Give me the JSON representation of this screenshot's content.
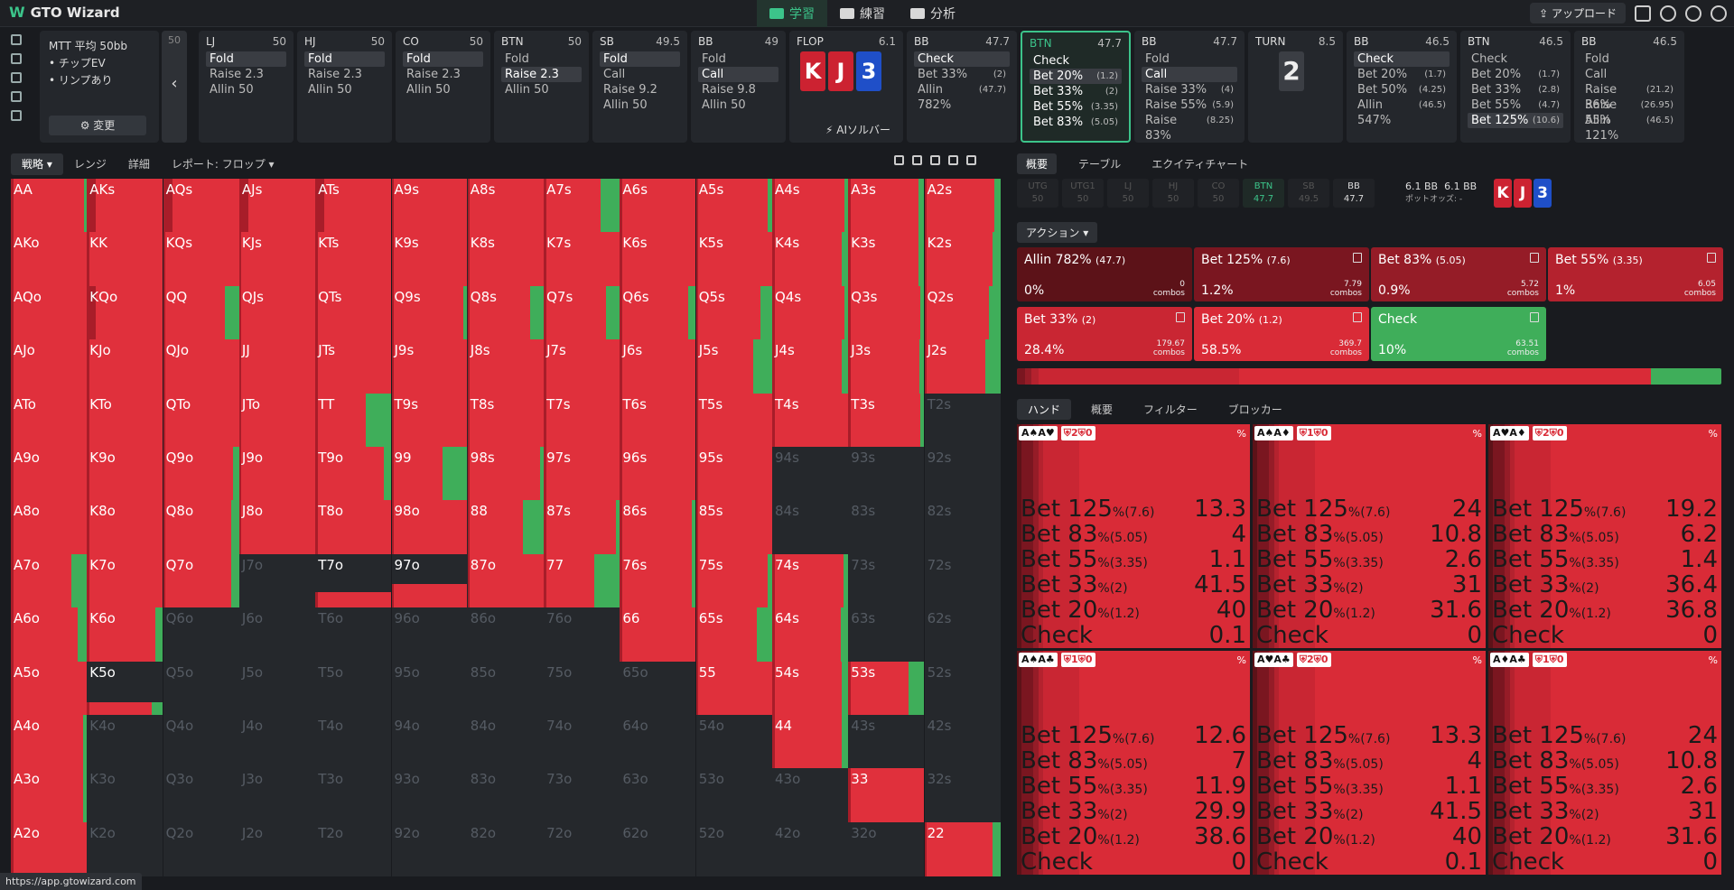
{
  "app": {
    "title": "GTO Wizard"
  },
  "nav": [
    {
      "label": "学習",
      "active": true
    },
    {
      "label": "練習",
      "active": false
    },
    {
      "label": "分析",
      "active": false
    }
  ],
  "topright": {
    "upload": "アップロード"
  },
  "mtt": {
    "title": "MTT 平均 50bb",
    "bullets": [
      "チップEV",
      "リンプあり"
    ],
    "change": "変更",
    "back_stack": "50"
  },
  "actions": [
    {
      "pos": "LJ",
      "stack": "50",
      "items": [
        {
          "a": "Fold",
          "sel": true
        },
        {
          "a": "Raise 2.3"
        },
        {
          "a": "Allin 50"
        }
      ]
    },
    {
      "pos": "HJ",
      "stack": "50",
      "items": [
        {
          "a": "Fold",
          "sel": true
        },
        {
          "a": "Raise 2.3"
        },
        {
          "a": "Allin 50"
        }
      ]
    },
    {
      "pos": "CO",
      "stack": "50",
      "items": [
        {
          "a": "Fold",
          "sel": true
        },
        {
          "a": "Raise 2.3"
        },
        {
          "a": "Allin 50"
        }
      ]
    },
    {
      "pos": "BTN",
      "stack": "50",
      "items": [
        {
          "a": "Fold"
        },
        {
          "a": "Raise 2.3",
          "sel": true
        },
        {
          "a": "Allin 50"
        }
      ]
    },
    {
      "pos": "SB",
      "stack": "49.5",
      "items": [
        {
          "a": "Fold",
          "sel": true
        },
        {
          "a": "Call"
        },
        {
          "a": "Raise 9.2"
        },
        {
          "a": "Allin 50"
        }
      ]
    },
    {
      "pos": "BB",
      "stack": "49",
      "items": [
        {
          "a": "Fold"
        },
        {
          "a": "Call",
          "sel": true
        },
        {
          "a": "Raise 9.8"
        },
        {
          "a": "Allin 50"
        }
      ]
    }
  ],
  "flop": {
    "label": "FLOP",
    "pot": "6.1",
    "cards": [
      "K",
      "J",
      "3"
    ],
    "solver": "AIソルバー"
  },
  "street_cards": [
    {
      "pos": "BB",
      "stack": "47.7",
      "items": [
        {
          "a": "Check",
          "sel": true
        },
        {
          "a": "Bet 33%",
          "s": "(2)"
        },
        {
          "a": "Allin 782%",
          "s": "(47.7)"
        }
      ]
    },
    {
      "pos": "BTN",
      "stack": "47.7",
      "hl": true,
      "items": [
        {
          "a": "Check"
        },
        {
          "a": "Bet 20%",
          "s": "(1.2)",
          "sel": true
        },
        {
          "a": "Bet 33%",
          "s": "(2)"
        },
        {
          "a": "Bet 55%",
          "s": "(3.35)"
        },
        {
          "a": "Bet 83%",
          "s": "(5.05)"
        }
      ]
    },
    {
      "pos": "BB",
      "stack": "47.7",
      "items": [
        {
          "a": "Fold"
        },
        {
          "a": "Call",
          "sel": true
        },
        {
          "a": "Raise 33%",
          "s": "(4)"
        },
        {
          "a": "Raise 55%",
          "s": "(5.9)"
        },
        {
          "a": "Raise 83%",
          "s": "(8.25)"
        }
      ]
    }
  ],
  "turn": {
    "label": "TURN",
    "pot": "8.5",
    "card": "2"
  },
  "turn_cards": [
    {
      "pos": "BB",
      "stack": "46.5",
      "items": [
        {
          "a": "Check",
          "sel": true
        },
        {
          "a": "Bet 20%",
          "s": "(1.7)"
        },
        {
          "a": "Bet 50%",
          "s": "(4.25)"
        },
        {
          "a": "Allin 547%",
          "s": "(46.5)"
        }
      ]
    },
    {
      "pos": "BTN",
      "stack": "46.5",
      "items": [
        {
          "a": "Check"
        },
        {
          "a": "Bet 20%",
          "s": "(1.7)"
        },
        {
          "a": "Bet 33%",
          "s": "(2.8)"
        },
        {
          "a": "Bet 55%",
          "s": "(4.7)"
        },
        {
          "a": "Bet 125%",
          "s": "(10.6)",
          "sel": true
        }
      ]
    },
    {
      "pos": "BB",
      "stack": "46.5",
      "items": [
        {
          "a": "Fold"
        },
        {
          "a": "Call"
        },
        {
          "a": "Raise 36%",
          "s": "(21.2)"
        },
        {
          "a": "Raise 55%",
          "s": "(26.95)"
        },
        {
          "a": "Allin 121%",
          "s": "(46.5)"
        }
      ]
    }
  ],
  "left_tabs": [
    "戦略",
    "レンジ",
    "詳細",
    "レポート: フロップ"
  ],
  "grid": {
    "ranks": [
      "A",
      "K",
      "Q",
      "J",
      "T",
      "9",
      "8",
      "7",
      "6",
      "5",
      "4",
      "3",
      "2"
    ],
    "empty": [
      "T2s",
      "94s",
      "93s",
      "92s",
      "84s",
      "83s",
      "82s",
      "73s",
      "72s",
      "J7o",
      "Q6o",
      "J6o",
      "T6o",
      "96o",
      "86o",
      "76o",
      "63s",
      "62s",
      "Q5o",
      "J5o",
      "T5o",
      "95o",
      "85o",
      "75o",
      "65o",
      "52s",
      "K4o",
      "Q4o",
      "J4o",
      "T4o",
      "94o",
      "84o",
      "74o",
      "64o",
      "54o",
      "43s",
      "42s",
      "K3o",
      "Q3o",
      "J3o",
      "T3o",
      "93o",
      "83o",
      "73o",
      "63o",
      "53o",
      "43o",
      "32s",
      "K2o",
      "Q2o",
      "J2o",
      "T2o",
      "92o",
      "82o",
      "72o",
      "62o",
      "52o",
      "42o",
      "32o"
    ],
    "partial": {
      "T7o": 0.3,
      "97o": 0.45,
      "K5o": 0.25
    },
    "check": {
      "AA": 0.04,
      "A7s": 0.25,
      "A5s": 0.05,
      "A4s": 0.05,
      "A3s": 0.08,
      "A2s": 0.08,
      "K4s": 0.08,
      "K3s": 0.08,
      "K2s": 0.1,
      "Q9s": 0.05,
      "Q8s": 0.18,
      "Q7s": 0.18,
      "Q6s": 0.1,
      "Q5s": 0.15,
      "Q4s": 0.05,
      "Q3s": 0.05,
      "Q2s": 0.15,
      "QQ": 0.18,
      "J5s": 0.25,
      "J4s": 0.08,
      "J3s": 0.06,
      "J2s": 0.2,
      "TT": 0.33,
      "T3s": 0.05,
      "Q9o": 0.08,
      "99": 0.33,
      "98s": 0.05,
      "T9o": 0.1,
      "Q8o": 0.1,
      "88": 0.27,
      "87s": 0.05,
      "86s": 0.05,
      "A7o": 0.2,
      "Q7o": 0.1,
      "77": 0.33,
      "76s": 0.05,
      "75s": 0.05,
      "74s": 0.06,
      "A6o": 0.12,
      "K6o": 0.1,
      "65s": 0.2,
      "64s": 0.1,
      "K5o": 0.15,
      "54s": 0.08,
      "53s": 0.2,
      "A4o": 0.05,
      "44": 0.08,
      "A3o": 0.05,
      "22": 0.1
    }
  },
  "right_tabs": [
    "概要",
    "テーブル",
    "エクイティチャート"
  ],
  "positions": [
    {
      "p": "UTG",
      "s": "50"
    },
    {
      "p": "UTG1",
      "s": "50"
    },
    {
      "p": "LJ",
      "s": "50"
    },
    {
      "p": "HJ",
      "s": "50"
    },
    {
      "p": "CO",
      "s": "50"
    },
    {
      "p": "BTN",
      "s": "47.7",
      "cls": "btn"
    },
    {
      "p": "SB",
      "s": "49.5"
    },
    {
      "p": "BB",
      "s": "47.7",
      "cls": "bb"
    }
  ],
  "pot": {
    "a": "6.1 BB",
    "b": "6.1 BB",
    "odds": "ポットオッズ: -"
  },
  "board": [
    "K",
    "J",
    "3"
  ],
  "action_drop": "アクション",
  "boxes": [
    {
      "t": "Allin 782%",
      "s": "(47.7)",
      "p": "0%",
      "c": "0",
      "color": "#5c1218"
    },
    {
      "t": "Bet 125%",
      "s": "(7.6)",
      "p": "1.2%",
      "c": "7.79",
      "color": "#7a1620"
    },
    {
      "t": "Bet 83%",
      "s": "(5.05)",
      "p": "0.9%",
      "c": "5.72",
      "color": "#951c27"
    },
    {
      "t": "Bet 55%",
      "s": "(3.35)",
      "p": "1%",
      "c": "6.05",
      "color": "#b4222e"
    },
    {
      "t": "Bet 33%",
      "s": "(2)",
      "p": "28.4%",
      "c": "179.67",
      "color": "#c92633"
    },
    {
      "t": "Bet 20%",
      "s": "(1.2)",
      "p": "58.5%",
      "c": "369.7",
      "color": "#d92b37"
    },
    {
      "t": "Check",
      "s": "",
      "p": "10%",
      "c": "63.51",
      "color": "#3fae5a"
    }
  ],
  "combos_label": "combos",
  "hand_tabs": [
    "ハンド",
    "概要",
    "フィルター",
    "ブロッカー"
  ],
  "hands": [
    {
      "c": "A♠A♥",
      "b1": "2",
      "b2": "0",
      "v": [
        "13.3",
        "4",
        "1.1",
        "41.5",
        "40",
        "0.1"
      ]
    },
    {
      "c": "A♠A♦",
      "b1": "1",
      "b2": "0",
      "v": [
        "24",
        "10.8",
        "2.6",
        "31",
        "31.6",
        "0"
      ]
    },
    {
      "c": "A♥A♦",
      "b1": "2",
      "b2": "0",
      "v": [
        "19.2",
        "6.2",
        "1.4",
        "36.4",
        "36.8",
        "0"
      ]
    },
    {
      "c": "A♠A♣",
      "b1": "1",
      "b2": "0",
      "v": [
        "12.6",
        "7",
        "11.9",
        "29.9",
        "38.6",
        "0"
      ]
    },
    {
      "c": "A♥A♣",
      "b1": "2",
      "b2": "0",
      "v": [
        "13.3",
        "4",
        "1.1",
        "41.5",
        "40",
        "0.1"
      ]
    },
    {
      "c": "A♦A♣",
      "b1": "1",
      "b2": "0",
      "v": [
        "24",
        "10.8",
        "2.6",
        "31",
        "31.6",
        "0"
      ]
    }
  ],
  "hand_actions": [
    {
      "a": "Bet 125",
      "s": "%(7.6)"
    },
    {
      "a": "Bet 83",
      "s": "%(5.05)"
    },
    {
      "a": "Bet 55",
      "s": "%(3.35)"
    },
    {
      "a": "Bet 33",
      "s": "%(2)"
    },
    {
      "a": "Bet 20",
      "s": "%(1.2)"
    },
    {
      "a": "Check",
      "s": ""
    }
  ],
  "url": "https://app.gtowizard.com"
}
